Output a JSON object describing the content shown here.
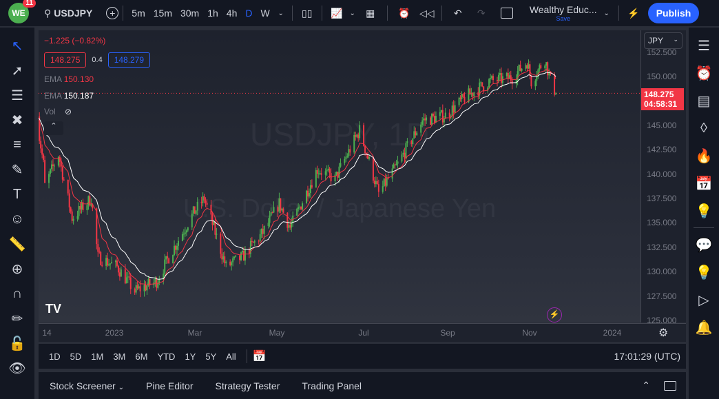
{
  "topbar": {
    "badge": "11",
    "symbol": "USDJPY",
    "intervals": [
      "5m",
      "15m",
      "30m",
      "1h",
      "4h",
      "D",
      "W"
    ],
    "active_interval": "D",
    "layout_name": "Wealthy Educ...",
    "save_label": "Save",
    "publish_label": "Publish"
  },
  "legend": {
    "change": "−1.225 (−0.82%)",
    "bid": "148.275",
    "spread": "0.4",
    "ask": "148.279",
    "ema1_label": "EMA",
    "ema1_value": "150.130",
    "ema2_label": "EMA",
    "ema2_value": "150.187",
    "vol_label": "Vol"
  },
  "watermark": {
    "line1": "USDJPY, 1D",
    "line2": "U.S. Dollar / Japanese Yen"
  },
  "price_axis": {
    "currency": "JPY",
    "ticks": [
      "152.500",
      "150.000",
      "145.000",
      "142.500",
      "140.000",
      "137.500",
      "135.000",
      "132.500",
      "130.000",
      "127.500",
      "125.000"
    ],
    "last_price": "148.275",
    "countdown": "04:58:31"
  },
  "time_axis": {
    "labels": [
      "14",
      "2023",
      "Mar",
      "May",
      "Jul",
      "Sep",
      "Nov",
      "2024"
    ]
  },
  "range_bar": {
    "ranges": [
      "1D",
      "5D",
      "1M",
      "3M",
      "6M",
      "YTD",
      "1Y",
      "5Y",
      "All"
    ],
    "clock": "17:01:29 (UTC)"
  },
  "bottom_panel": {
    "tabs": [
      "Stock Screener",
      "Pine Editor",
      "Strategy Tester",
      "Trading Panel"
    ]
  },
  "colors": {
    "up": "#26a69a",
    "bull_candle": "#4caf50",
    "down": "#f23645",
    "accent": "#2962ff",
    "ema_fast": "#f23645",
    "ema_slow": "#ffffff"
  },
  "chart_data": {
    "type": "candlestick",
    "symbol": "USDJPY",
    "interval": "1D",
    "ylim": [
      125,
      152.5
    ],
    "anchors_close": [
      [
        "2022-11-04",
        146.6
      ],
      [
        "2022-11-10",
        141
      ],
      [
        "2022-11-11",
        138.8
      ],
      [
        "2022-11-21",
        142
      ],
      [
        "2022-12-01",
        135.5
      ],
      [
        "2022-12-15",
        137.5
      ],
      [
        "2022-12-20",
        131.5
      ],
      [
        "2023-01-03",
        130.5
      ],
      [
        "2023-01-16",
        128
      ],
      [
        "2023-02-01",
        129
      ],
      [
        "2023-02-10",
        131.5
      ],
      [
        "2023-02-28",
        136
      ],
      [
        "2023-03-08",
        137.5
      ],
      [
        "2023-03-24",
        130.5
      ],
      [
        "2023-04-05",
        131.5
      ],
      [
        "2023-04-20",
        134
      ],
      [
        "2023-05-02",
        137
      ],
      [
        "2023-05-10",
        134.5
      ],
      [
        "2023-05-30",
        140.5
      ],
      [
        "2023-06-12",
        139.5
      ],
      [
        "2023-06-30",
        144.5
      ],
      [
        "2023-07-14",
        138
      ],
      [
        "2023-07-28",
        141
      ],
      [
        "2023-08-15",
        145.5
      ],
      [
        "2023-09-01",
        146
      ],
      [
        "2023-09-15",
        147.8
      ],
      [
        "2023-10-03",
        149.5
      ],
      [
        "2023-10-20",
        149.9
      ],
      [
        "2023-10-31",
        151.5
      ],
      [
        "2023-11-03",
        149.5
      ],
      [
        "2023-11-13",
        151.8
      ],
      [
        "2023-11-17",
        149.6
      ],
      [
        "2023-11-21",
        148.275
      ]
    ],
    "indicators": [
      {
        "name": "EMA",
        "value": 150.13
      },
      {
        "name": "EMA",
        "value": 150.187
      }
    ]
  }
}
